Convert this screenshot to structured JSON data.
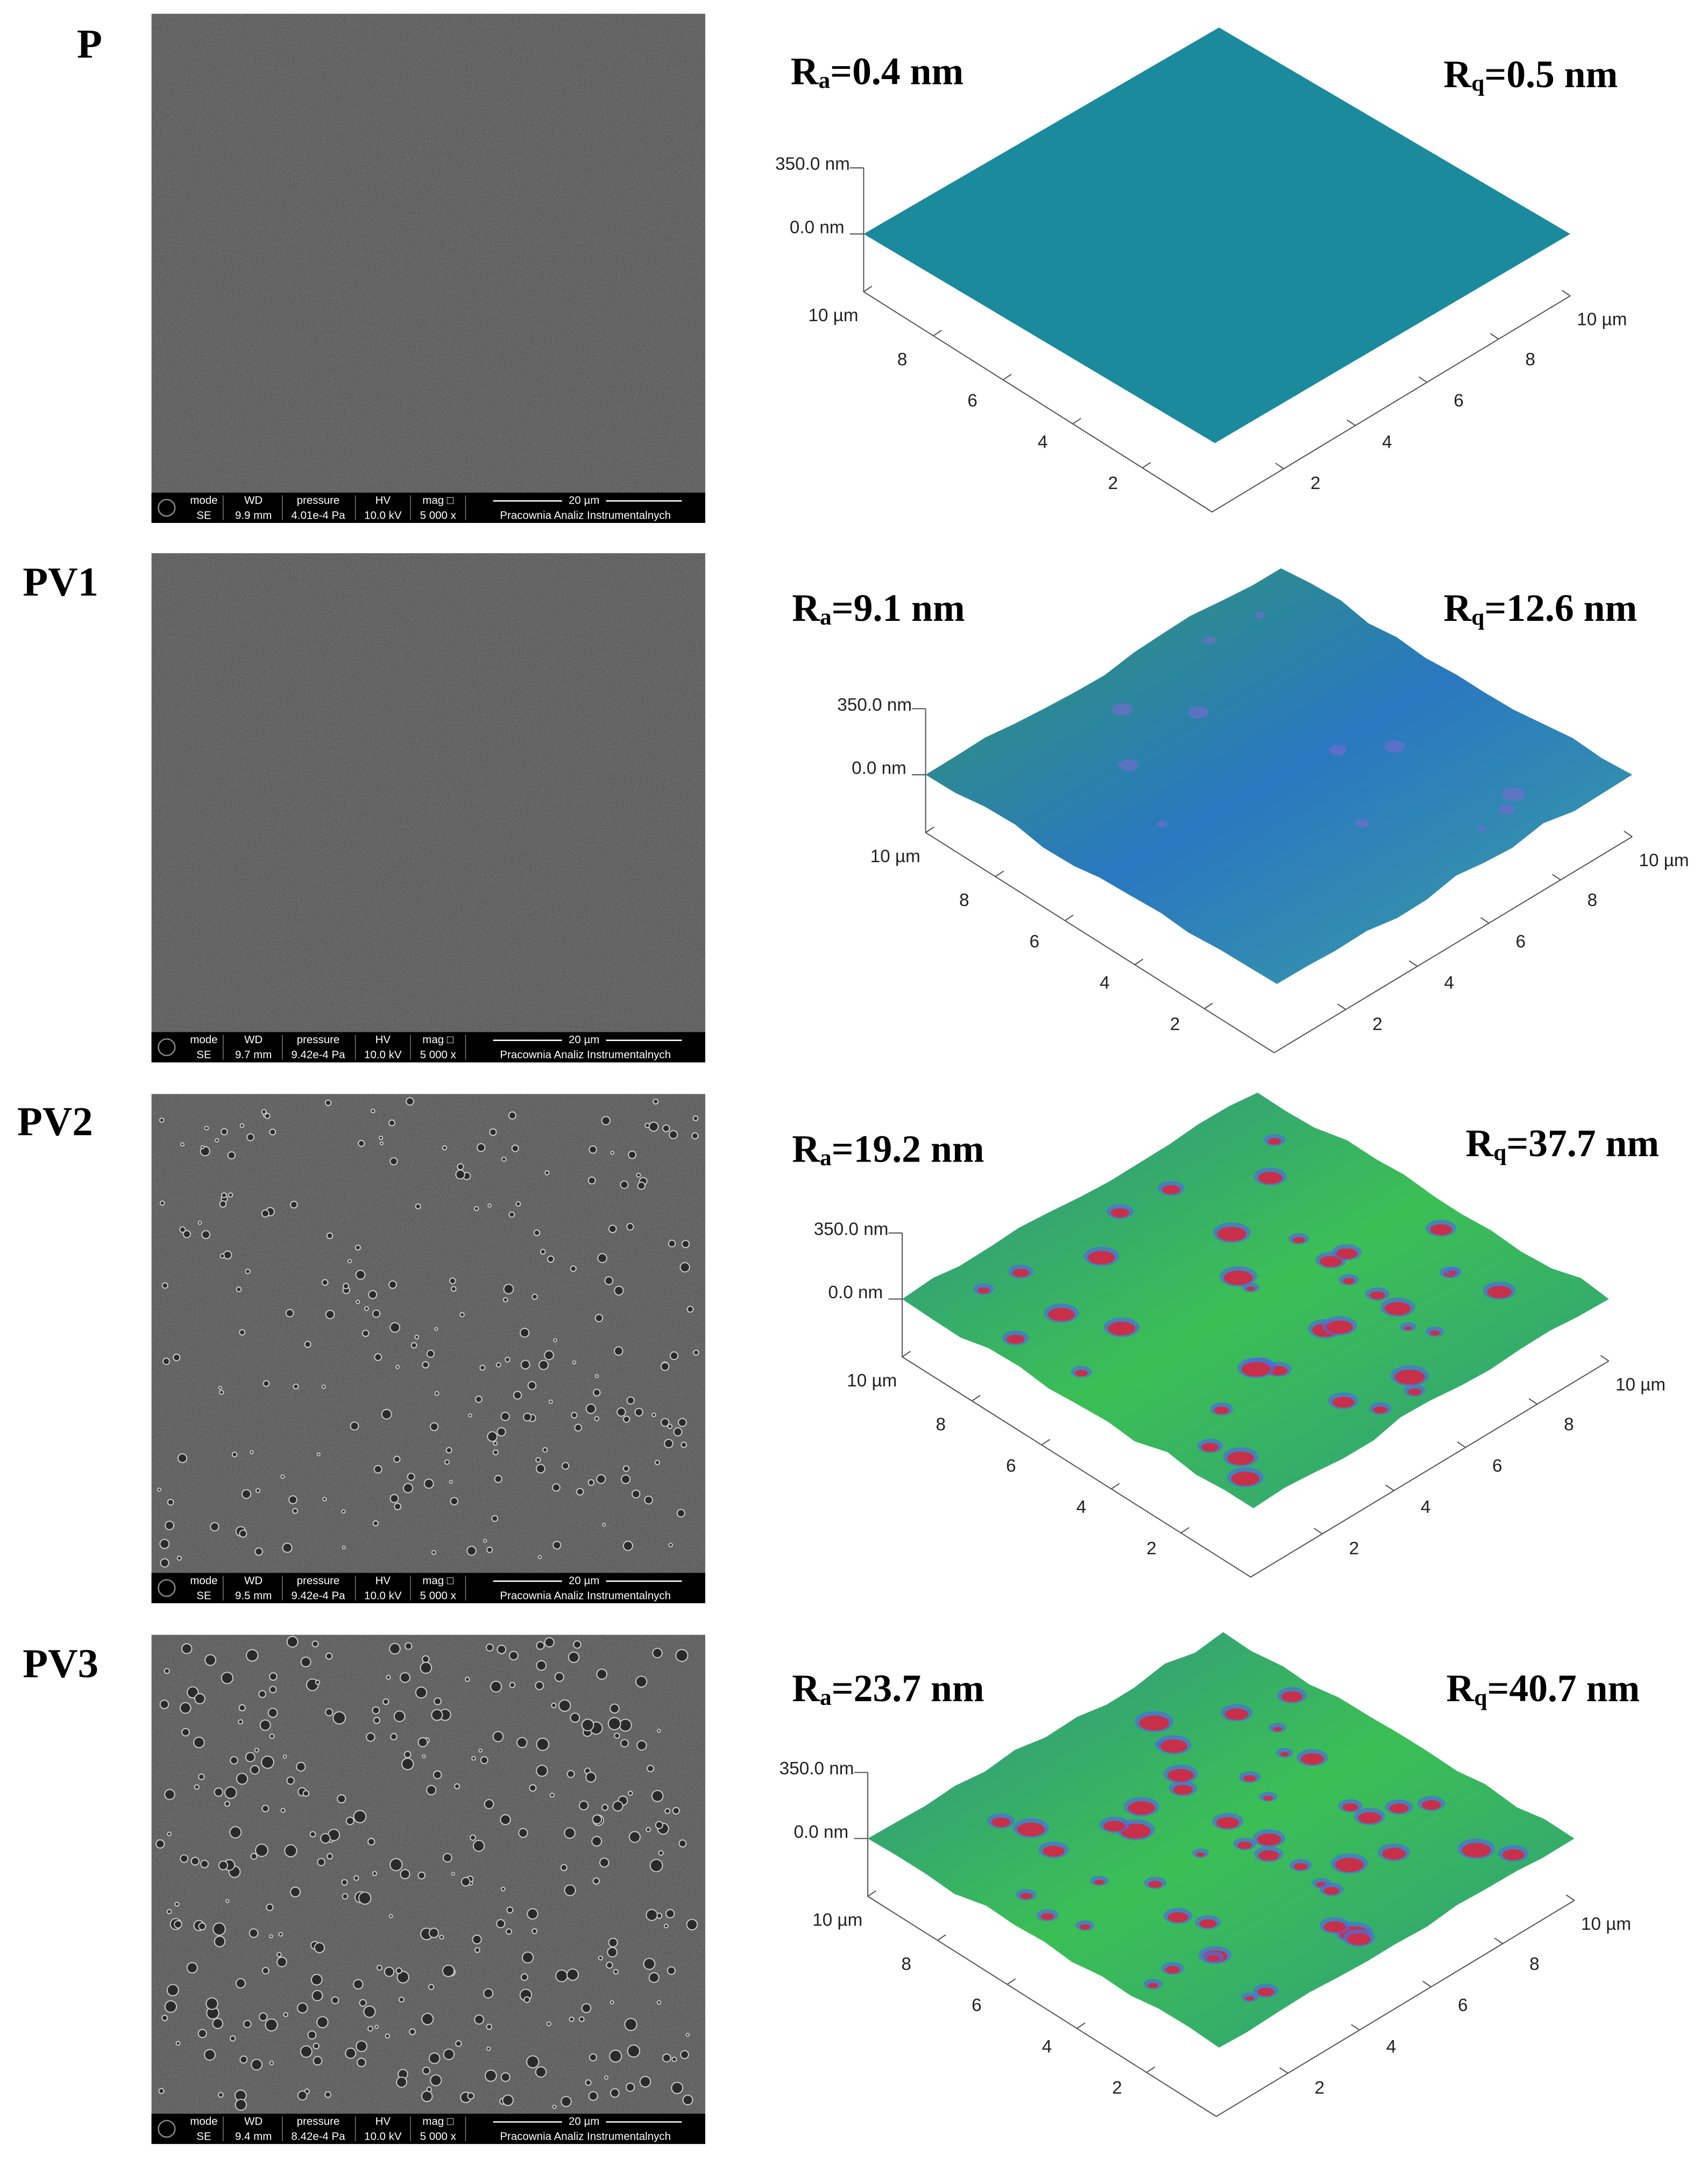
{
  "figure": {
    "panels": [
      {
        "label": "P",
        "sem": {
          "header": [
            "mode",
            "WD",
            "pressure",
            "HV",
            "mag □"
          ],
          "scale_bar": "20 µm",
          "values": [
            "SE",
            "9.9 mm",
            "4.01e-4 Pa",
            "10.0 kV",
            "5 000 x"
          ],
          "lab": "Pracownia Analiz Instrumentalnych"
        },
        "afm": {
          "ra": {
            "symbol": "R",
            "subscript": "a",
            "text": "=0.4 nm"
          },
          "rq": {
            "symbol": "R",
            "subscript": "q",
            "text": "=0.5 nm"
          },
          "z_labels": [
            "350.0 nm",
            "0.0 nm"
          ],
          "x_labels": [
            "10 µm",
            "8",
            "6",
            "4",
            "2"
          ],
          "y_labels": [
            "2",
            "4",
            "6",
            "8",
            "10 µm"
          ]
        }
      },
      {
        "label": "PV1",
        "sem": {
          "header": [
            "mode",
            "WD",
            "pressure",
            "HV",
            "mag □"
          ],
          "scale_bar": "20 µm",
          "values": [
            "SE",
            "9.7 mm",
            "9.42e-4 Pa",
            "10.0 kV",
            "5 000 x"
          ],
          "lab": "Pracownia Analiz Instrumentalnych"
        },
        "afm": {
          "ra": {
            "symbol": "R",
            "subscript": "a",
            "text": "=9.1 nm"
          },
          "rq": {
            "symbol": "R",
            "subscript": "q",
            "text": "=12.6 nm"
          },
          "z_labels": [
            "350.0 nm",
            "0.0 nm"
          ],
          "x_labels": [
            "10 µm",
            "8",
            "6",
            "4",
            "2"
          ],
          "y_labels": [
            "2",
            "4",
            "6",
            "8",
            "10 µm"
          ]
        }
      },
      {
        "label": "PV2",
        "sem": {
          "header": [
            "mode",
            "WD",
            "pressure",
            "HV",
            "mag □"
          ],
          "scale_bar": "20 µm",
          "values": [
            "SE",
            "9.5 mm",
            "9.42e-4 Pa",
            "10.0 kV",
            "5 000 x"
          ],
          "lab": "Pracownia Analiz Instrumentalnych"
        },
        "afm": {
          "ra": {
            "symbol": "R",
            "subscript": "a",
            "text": "=19.2 nm"
          },
          "rq": {
            "symbol": "R",
            "subscript": "q",
            "text": "=37.7 nm"
          },
          "z_labels": [
            "350.0 nm",
            "0.0 nm"
          ],
          "x_labels": [
            "10 µm",
            "8",
            "6",
            "4",
            "2"
          ],
          "y_labels": [
            "2",
            "4",
            "6",
            "8",
            "10 µm"
          ]
        }
      },
      {
        "label": "PV3",
        "sem": {
          "header": [
            "mode",
            "WD",
            "pressure",
            "HV",
            "mag □"
          ],
          "scale_bar": "20 µm",
          "values": [
            "SE",
            "9.4 mm",
            "8.42e-4 Pa",
            "10.0 kV",
            "5 000 x"
          ],
          "lab": "Pracownia Analiz Instrumentalnych"
        },
        "afm": {
          "ra": {
            "symbol": "R",
            "subscript": "a",
            "text": "=23.7 nm"
          },
          "rq": {
            "symbol": "R",
            "subscript": "q",
            "text": "=40.7 nm"
          },
          "z_labels": [
            "350.0 nm",
            "0.0 nm"
          ],
          "x_labels": [
            "10 µm",
            "8",
            "6",
            "4",
            "2"
          ],
          "y_labels": [
            "2",
            "4",
            "6",
            "8",
            "10 µm"
          ]
        }
      }
    ]
  }
}
